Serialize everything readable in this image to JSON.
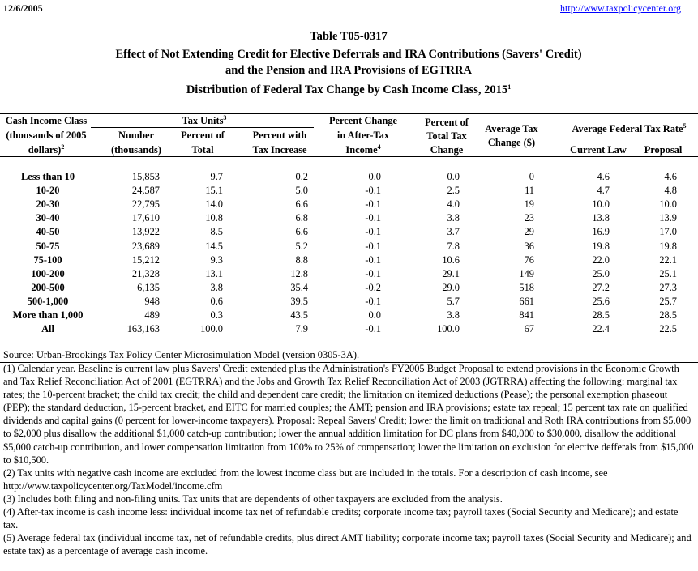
{
  "header": {
    "date": "12/6/2005",
    "url": "http://www.taxpolicycenter.org"
  },
  "title": {
    "table_id": "Table T05-0317",
    "lines": [
      "Effect of Not Extending Credit for Elective Deferrals and IRA Contributions (Savers' Credit)",
      "and the Pension and IRA Provisions of EGTRRA"
    ],
    "subtitle": "Distribution of Federal Tax Change by Cash Income Class, 2015",
    "subtitle_note": "1"
  },
  "table": {
    "group_headers": [
      {
        "text": "Tax Units",
        "note": "3"
      },
      {
        "text": "Average Federal Tax Rate",
        "note": "5"
      }
    ],
    "column_headers": [
      {
        "lines": [
          "Cash Income Class",
          "(thousands of 2005",
          "dollars)"
        ],
        "note": "2"
      },
      {
        "lines": [
          "Number",
          "(thousands)"
        ]
      },
      {
        "lines": [
          "Percent of",
          "Total"
        ]
      },
      {
        "lines": [
          "Percent with",
          "Tax Increase"
        ]
      },
      {
        "lines": [
          "Percent Change",
          "in After-Tax",
          "Income"
        ],
        "note": "4"
      },
      {
        "lines": [
          "Percent of",
          "Total Tax",
          "Change"
        ]
      },
      {
        "lines": [
          "Average Tax",
          "Change ($)"
        ]
      },
      {
        "lines": [
          "Current Law"
        ]
      },
      {
        "lines": [
          "Proposal"
        ]
      }
    ],
    "rows": [
      [
        "Less than 10",
        "15,853",
        "9.7",
        "0.2",
        "0.0",
        "0.0",
        "0",
        "4.6",
        "4.6"
      ],
      [
        "10-20",
        "24,587",
        "15.1",
        "5.0",
        "-0.1",
        "2.5",
        "11",
        "4.7",
        "4.8"
      ],
      [
        "20-30",
        "22,795",
        "14.0",
        "6.6",
        "-0.1",
        "4.0",
        "19",
        "10.0",
        "10.0"
      ],
      [
        "30-40",
        "17,610",
        "10.8",
        "6.8",
        "-0.1",
        "3.8",
        "23",
        "13.8",
        "13.9"
      ],
      [
        "40-50",
        "13,922",
        "8.5",
        "6.6",
        "-0.1",
        "3.7",
        "29",
        "16.9",
        "17.0"
      ],
      [
        "50-75",
        "23,689",
        "14.5",
        "5.2",
        "-0.1",
        "7.8",
        "36",
        "19.8",
        "19.8"
      ],
      [
        "75-100",
        "15,212",
        "9.3",
        "8.8",
        "-0.1",
        "10.6",
        "76",
        "22.0",
        "22.1"
      ],
      [
        "100-200",
        "21,328",
        "13.1",
        "12.8",
        "-0.1",
        "29.1",
        "149",
        "25.0",
        "25.1"
      ],
      [
        "200-500",
        "6,135",
        "3.8",
        "35.4",
        "-0.2",
        "29.0",
        "518",
        "27.2",
        "27.3"
      ],
      [
        "500-1,000",
        "948",
        "0.6",
        "39.5",
        "-0.1",
        "5.7",
        "661",
        "25.6",
        "25.7"
      ],
      [
        "More than 1,000",
        "489",
        "0.3",
        "43.5",
        "0.0",
        "3.8",
        "841",
        "28.5",
        "28.5"
      ],
      [
        "All",
        "163,163",
        "100.0",
        "7.9",
        "-0.1",
        "100.0",
        "67",
        "22.4",
        "22.5"
      ]
    ]
  },
  "source": "Source: Urban-Brookings Tax Policy Center Microsimulation Model (version 0305-3A).",
  "notes": [
    "(1) Calendar year. Baseline is current law plus Savers' Credit extended plus the Administration's FY2005 Budget Proposal to extend provisions in the Economic Growth and Tax Relief Reconciliation Act of 2001 (EGTRRA) and the Jobs and Growth Tax Relief Reconciliation Act of 2003 (JGTRRA) affecting the following: marginal tax rates; the 10-percent bracket; the child tax credit; the child and dependent care credit; the limitation on itemized deductions (Pease); the personal exemption phaseout (PEP); the standard deduction, 15-percent bracket, and EITC for married couples; the AMT; pension and IRA provisions; estate tax repeal; 15 percent tax rate on qualified dividends and capital gains (0 percent for lower-income taxpayers). Proposal: Repeal Savers' Credit; lower the limit on traditional and Roth IRA contributions from $5,000 to $2,000 plus disallow the additional $1,000 catch-up contribution; lower the annual addition limitation for DC plans from $40,000 to $30,000, disallow the additional $5,000 catch-up contribution, and lower compensation limitation from 100% to 25% of compensation; lower the limitation on exclusion for elective defferals from $15,000 to $10,500.",
    "(2) Tax units with negative cash income are excluded from the lowest income class but are included in the totals. For a description of cash income, see http://www.taxpolicycenter.org/TaxModel/income.cfm",
    "(3) Includes both filing and non-filing units.  Tax units that are dependents of other taxpayers are excluded from the analysis.",
    "(4) After-tax income is cash income less: individual income tax net of refundable credits; corporate income tax; payroll taxes (Social Security and Medicare); and estate tax.",
    "(5) Average federal tax (individual income tax, net of refundable credits, plus direct AMT liability; corporate income tax; payroll taxes (Social Security and Medicare); and estate tax) as a percentage of average cash income."
  ]
}
